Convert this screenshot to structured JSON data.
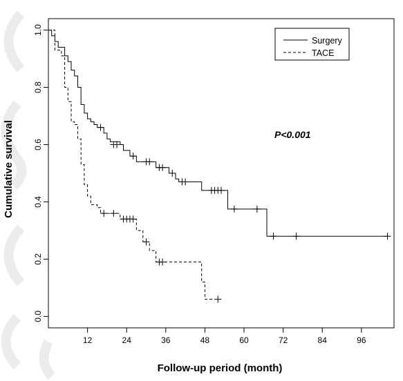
{
  "chart_data": {
    "type": "line",
    "subtype": "kaplan-meier step",
    "xlabel": "Follow-up period (month)",
    "ylabel": "Cumulative survival",
    "xlim": [
      0,
      106
    ],
    "ylim": [
      -0.04,
      1.04
    ],
    "xticks": [
      12,
      24,
      36,
      48,
      60,
      72,
      84,
      96
    ],
    "xtick_labels": [
      "12",
      "24",
      "36",
      "48",
      "60",
      "72",
      "84",
      "96"
    ],
    "yticks": [
      0.0,
      0.2,
      0.4,
      0.6,
      0.8,
      1.0
    ],
    "ytick_labels": [
      "0.0",
      "0.2",
      "0.4",
      "0.6",
      "0.8",
      "1.0"
    ],
    "grid": false,
    "legend_position": "top-right",
    "annotation": "P<0.001",
    "colors": {
      "line": "#000000",
      "background": "#ffffff",
      "watermark": "#e6e6e6"
    },
    "series": [
      {
        "name": "Surgery",
        "line_style": "solid",
        "steps": [
          [
            0,
            1.0
          ],
          [
            1,
            0.98
          ],
          [
            2,
            0.96
          ],
          [
            3,
            0.94
          ],
          [
            5,
            0.91
          ],
          [
            6,
            0.89
          ],
          [
            7,
            0.86
          ],
          [
            8,
            0.84
          ],
          [
            9,
            0.8
          ],
          [
            10,
            0.74
          ],
          [
            11,
            0.71
          ],
          [
            12,
            0.69
          ],
          [
            13,
            0.68
          ],
          [
            14,
            0.67
          ],
          [
            15,
            0.66
          ],
          [
            17,
            0.64
          ],
          [
            18,
            0.62
          ],
          [
            19,
            0.61
          ],
          [
            22,
            0.6
          ],
          [
            23,
            0.58
          ],
          [
            25,
            0.56
          ],
          [
            27,
            0.54
          ],
          [
            33,
            0.52
          ],
          [
            37,
            0.5
          ],
          [
            39,
            0.48
          ],
          [
            40,
            0.47
          ],
          [
            47,
            0.44
          ],
          [
            55,
            0.375
          ],
          [
            67,
            0.28
          ],
          [
            104,
            0.28
          ]
        ],
        "censored": [
          [
            16,
            0.66
          ],
          [
            20,
            0.6
          ],
          [
            21,
            0.6
          ],
          [
            26,
            0.56
          ],
          [
            30,
            0.54
          ],
          [
            31,
            0.54
          ],
          [
            34,
            0.52
          ],
          [
            35,
            0.52
          ],
          [
            38,
            0.5
          ],
          [
            41,
            0.47
          ],
          [
            42,
            0.47
          ],
          [
            50,
            0.44
          ],
          [
            51,
            0.44
          ],
          [
            52,
            0.44
          ],
          [
            53,
            0.44
          ],
          [
            57,
            0.375
          ],
          [
            64,
            0.375
          ],
          [
            69,
            0.28
          ],
          [
            76,
            0.28
          ],
          [
            104,
            0.28
          ]
        ]
      },
      {
        "name": "TACE",
        "line_style": "dashed",
        "steps": [
          [
            0,
            1.0
          ],
          [
            2,
            0.93
          ],
          [
            4,
            0.91
          ],
          [
            5,
            0.8
          ],
          [
            6,
            0.75
          ],
          [
            7,
            0.68
          ],
          [
            8,
            0.67
          ],
          [
            9,
            0.62
          ],
          [
            10,
            0.53
          ],
          [
            11,
            0.46
          ],
          [
            12,
            0.42
          ],
          [
            13,
            0.39
          ],
          [
            15,
            0.38
          ],
          [
            16,
            0.36
          ],
          [
            22,
            0.34
          ],
          [
            27,
            0.3
          ],
          [
            29,
            0.26
          ],
          [
            31,
            0.23
          ],
          [
            33,
            0.19
          ],
          [
            47,
            0.12
          ],
          [
            48,
            0.06
          ],
          [
            52,
            0.06
          ]
        ],
        "censored": [
          [
            17,
            0.36
          ],
          [
            20,
            0.36
          ],
          [
            23,
            0.34
          ],
          [
            24,
            0.34
          ],
          [
            25,
            0.34
          ],
          [
            26,
            0.34
          ],
          [
            30,
            0.26
          ],
          [
            34,
            0.19
          ],
          [
            35,
            0.19
          ],
          [
            52,
            0.06
          ]
        ]
      }
    ]
  }
}
